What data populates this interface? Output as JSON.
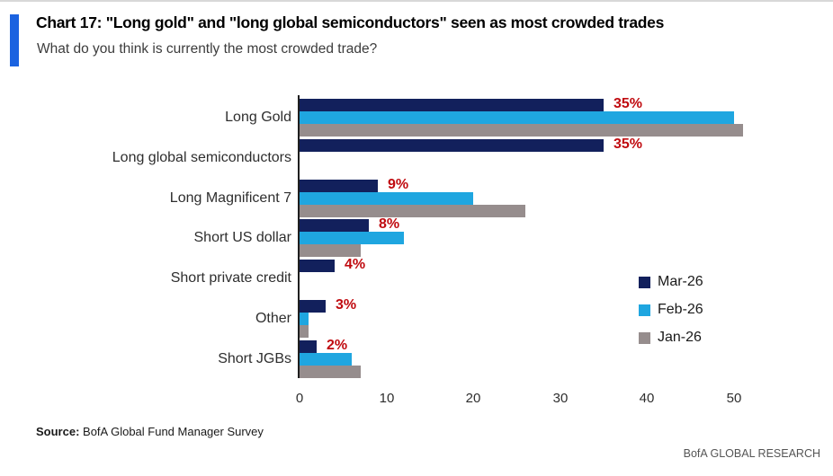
{
  "header": {
    "title": "Chart 17: \"Long gold\" and \"long global semiconductors\" seen as most crowded trades",
    "subtitle": "What do you think is currently the most crowded trade?",
    "accent_color": "#1b63e0"
  },
  "chart_data": {
    "type": "bar",
    "orientation": "horizontal",
    "title": "Chart 17: \"Long gold\" and \"long global semiconductors\" seen as most crowded trades",
    "subtitle": "What do you think is currently the most crowded trade?",
    "categories": [
      "Long Gold",
      "Long global semiconductors",
      "Long Magnificent 7",
      "Short US dollar",
      "Short private credit",
      "Other",
      "Short JGBs"
    ],
    "series": [
      {
        "name": "Mar-26",
        "color": "#12205c",
        "values": [
          35,
          35,
          9,
          8,
          4,
          3,
          2
        ]
      },
      {
        "name": "Feb-26",
        "color": "#1fa6e0",
        "values": [
          50,
          null,
          20,
          12,
          null,
          1,
          6
        ]
      },
      {
        "name": "Jan-26",
        "color": "#968d8d",
        "values": [
          51,
          null,
          26,
          7,
          null,
          1,
          7
        ]
      }
    ],
    "data_labels": [
      "35%",
      "35%",
      "9%",
      "8%",
      "4%",
      "3%",
      "2%"
    ],
    "data_label_color": "#c00b10",
    "xlabel": "",
    "ylabel": "",
    "xticks": [
      0,
      10,
      20,
      30,
      40,
      50
    ],
    "xlim": [
      0,
      55
    ],
    "grid": false,
    "legend_position": "middle-right",
    "axis_line_color": "#1f1f1f"
  },
  "footer": {
    "source_label": "Source:",
    "source_text": " BofA Global Fund Manager Survey",
    "brand": "BofA GLOBAL RESEARCH"
  }
}
